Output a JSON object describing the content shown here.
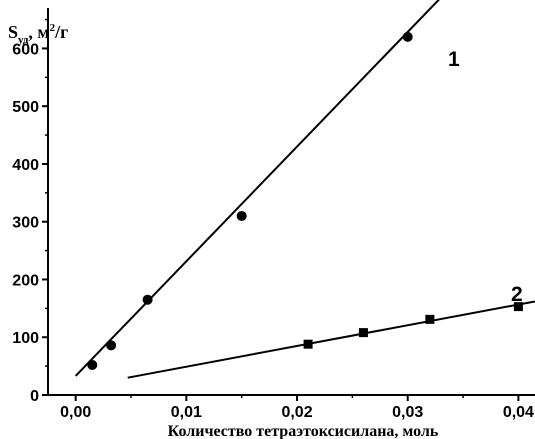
{
  "chart_data": {
    "type": "scatter",
    "title": "",
    "xlabel": "Количество тетраэтоксисилана, моль",
    "ylabel": {
      "main": "S",
      "sub": "уд",
      "unit": ", м",
      "sup": "2",
      "unit_tail": "/г"
    },
    "xlim": [
      -0.0025,
      0.0415
    ],
    "ylim": [
      0,
      670
    ],
    "x_ticks": [
      0.0,
      0.01,
      0.02,
      0.03,
      0.04
    ],
    "x_tick_labels": [
      "0,00",
      "0,01",
      "0,02",
      "0,03",
      "0,04"
    ],
    "y_ticks": [
      0,
      100,
      200,
      300,
      400,
      500,
      600
    ],
    "y_tick_labels": [
      "0",
      "100",
      "200",
      "300",
      "400",
      "500",
      "600"
    ],
    "grid": false,
    "series": [
      {
        "name": "1",
        "marker": "circle",
        "points": [
          {
            "x": 0.0015,
            "y": 52
          },
          {
            "x": 0.0032,
            "y": 86
          },
          {
            "x": 0.0065,
            "y": 165
          },
          {
            "x": 0.015,
            "y": 310
          },
          {
            "x": 0.03,
            "y": 620
          }
        ],
        "fit": {
          "x": [
            0.0,
            0.0336
          ],
          "y": [
            33,
            700
          ]
        }
      },
      {
        "name": "2",
        "marker": "square",
        "points": [
          {
            "x": 0.021,
            "y": 88
          },
          {
            "x": 0.026,
            "y": 108
          },
          {
            "x": 0.032,
            "y": 131
          },
          {
            "x": 0.04,
            "y": 153
          }
        ],
        "fit": {
          "x": [
            0.0047,
            0.0415
          ],
          "y": [
            30,
            162
          ]
        }
      }
    ]
  }
}
